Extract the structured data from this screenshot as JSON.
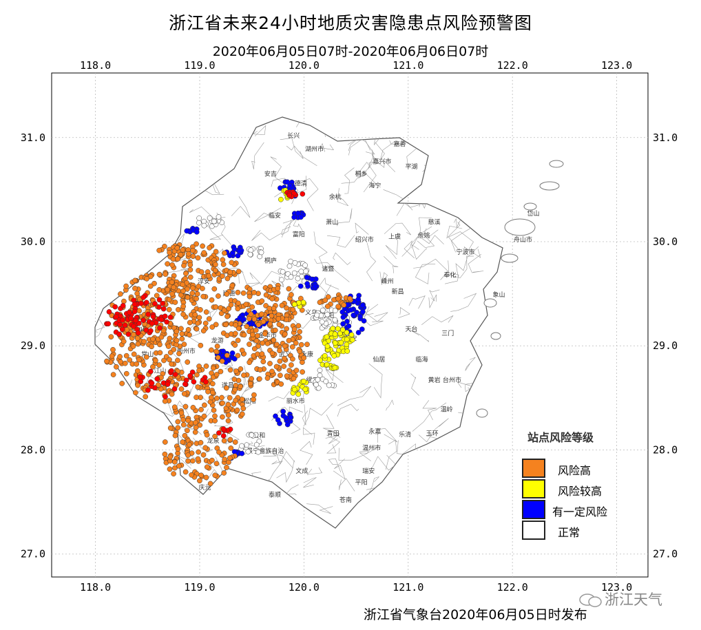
{
  "title": "浙江省未来24小时地质灾害隐患点风险预警图",
  "subtitle": "2020年06月05日07时-2020年06月06日07时",
  "footer": "浙江省气象台2020年06月05日时发布",
  "watermark": "浙江天气",
  "axes": {
    "lon_ticks": [
      "118.0",
      "119.0",
      "120.0",
      "121.0",
      "122.0",
      "123.0"
    ],
    "lat_ticks": [
      "31.0",
      "30.0",
      "29.0",
      "28.0",
      "27.0"
    ],
    "lon_range": [
      117.58,
      123.3
    ],
    "lat_range": [
      26.78,
      31.62
    ]
  },
  "legend": {
    "title": "站点风险等级",
    "items": [
      {
        "label": "风险高",
        "color": "#f5821f"
      },
      {
        "label": "风险较高",
        "color": "#ffff00"
      },
      {
        "label": "有一定风险",
        "color": "#0000ff"
      },
      {
        "label": "正常",
        "color": "#ffffff"
      }
    ]
  },
  "colors": {
    "highest": "#ff0000",
    "high": "#f5821f",
    "elevated": "#ffff00",
    "some": "#0000ff",
    "normal": "#ffffff",
    "county_line": "#9a9a9a"
  },
  "cities": [
    {
      "name": "长兴",
      "lon": 119.9,
      "lat": 31.0
    },
    {
      "name": "湖州市",
      "lon": 120.1,
      "lat": 30.87
    },
    {
      "name": "嘉善",
      "lon": 120.92,
      "lat": 30.92
    },
    {
      "name": "嘉兴市",
      "lon": 120.75,
      "lat": 30.75
    },
    {
      "name": "平湖",
      "lon": 121.03,
      "lat": 30.7
    },
    {
      "name": "德清",
      "lon": 119.97,
      "lat": 30.54
    },
    {
      "name": "桐乡",
      "lon": 120.55,
      "lat": 30.63
    },
    {
      "name": "海宁",
      "lon": 120.68,
      "lat": 30.52
    },
    {
      "name": "安吉",
      "lon": 119.68,
      "lat": 30.63
    },
    {
      "name": "余杭",
      "lon": 120.3,
      "lat": 30.41
    },
    {
      "name": "临安",
      "lon": 119.72,
      "lat": 30.23
    },
    {
      "name": "萧山",
      "lon": 120.27,
      "lat": 30.17
    },
    {
      "name": "绍兴市",
      "lon": 120.58,
      "lat": 30.0
    },
    {
      "name": "上虞",
      "lon": 120.87,
      "lat": 30.03
    },
    {
      "name": "余姚",
      "lon": 121.15,
      "lat": 30.04
    },
    {
      "name": "慈溪",
      "lon": 121.25,
      "lat": 30.17
    },
    {
      "name": "岱山",
      "lon": 122.2,
      "lat": 30.25
    },
    {
      "name": "舟山市",
      "lon": 122.1,
      "lat": 30.0
    },
    {
      "name": "宁波市",
      "lon": 121.55,
      "lat": 29.88
    },
    {
      "name": "富阳",
      "lon": 119.95,
      "lat": 30.05
    },
    {
      "name": "桐庐",
      "lon": 119.68,
      "lat": 29.8
    },
    {
      "name": "诸暨",
      "lon": 120.23,
      "lat": 29.72
    },
    {
      "name": "嵊州",
      "lon": 120.8,
      "lat": 29.6
    },
    {
      "name": "奉化",
      "lon": 121.4,
      "lat": 29.66
    },
    {
      "name": "象山",
      "lon": 121.87,
      "lat": 29.47
    },
    {
      "name": "淳安",
      "lon": 119.04,
      "lat": 29.6
    },
    {
      "name": "建德",
      "lon": 119.28,
      "lat": 29.48
    },
    {
      "name": "兰溪",
      "lon": 119.46,
      "lat": 29.2
    },
    {
      "name": "义乌",
      "lon": 120.07,
      "lat": 29.3
    },
    {
      "name": "东阳",
      "lon": 120.23,
      "lat": 29.27
    },
    {
      "name": "新昌",
      "lon": 120.9,
      "lat": 29.5
    },
    {
      "name": "天台",
      "lon": 121.03,
      "lat": 29.14
    },
    {
      "name": "三门",
      "lon": 121.38,
      "lat": 29.1
    },
    {
      "name": "开化",
      "lon": 118.41,
      "lat": 29.13
    },
    {
      "name": "常山",
      "lon": 118.5,
      "lat": 28.9
    },
    {
      "name": "衢州市",
      "lon": 118.87,
      "lat": 28.93
    },
    {
      "name": "龙游",
      "lon": 119.17,
      "lat": 29.03
    },
    {
      "name": "金华市",
      "lon": 119.65,
      "lat": 29.08
    },
    {
      "name": "武义",
      "lon": 119.82,
      "lat": 28.9
    },
    {
      "name": "永康",
      "lon": 120.03,
      "lat": 28.9
    },
    {
      "name": "磐安",
      "lon": 120.45,
      "lat": 29.05
    },
    {
      "name": "仙居",
      "lon": 120.72,
      "lat": 28.85
    },
    {
      "name": "临海",
      "lon": 121.13,
      "lat": 28.85
    },
    {
      "name": "台州市",
      "lon": 121.42,
      "lat": 28.65
    },
    {
      "name": "江山",
      "lon": 118.62,
      "lat": 28.74
    },
    {
      "name": "遂昌",
      "lon": 119.27,
      "lat": 28.6
    },
    {
      "name": "松阳",
      "lon": 119.48,
      "lat": 28.45
    },
    {
      "name": "丽水市",
      "lon": 119.92,
      "lat": 28.45
    },
    {
      "name": "缙云",
      "lon": 120.08,
      "lat": 28.65
    },
    {
      "name": "黄岩",
      "lon": 121.25,
      "lat": 28.65
    },
    {
      "name": "温岭",
      "lon": 121.37,
      "lat": 28.37
    },
    {
      "name": "玉环",
      "lon": 121.23,
      "lat": 28.14
    },
    {
      "name": "乐清",
      "lon": 120.97,
      "lat": 28.13
    },
    {
      "name": "青田",
      "lon": 120.28,
      "lat": 28.14
    },
    {
      "name": "永嘉",
      "lon": 120.68,
      "lat": 28.16
    },
    {
      "name": "云和",
      "lon": 119.57,
      "lat": 28.12
    },
    {
      "name": "龙泉",
      "lon": 119.13,
      "lat": 28.07
    },
    {
      "name": "景宁畲族自治",
      "lon": 119.63,
      "lat": 27.97
    },
    {
      "name": "温州市",
      "lon": 120.65,
      "lat": 28.0
    },
    {
      "name": "瑞安",
      "lon": 120.62,
      "lat": 27.78
    },
    {
      "name": "文成",
      "lon": 119.98,
      "lat": 27.78
    },
    {
      "name": "泰顺",
      "lon": 119.72,
      "lat": 27.55
    },
    {
      "name": "平阳",
      "lon": 120.55,
      "lat": 27.67
    },
    {
      "name": "苍南",
      "lon": 120.4,
      "lat": 27.5
    },
    {
      "name": "庆元",
      "lon": 119.05,
      "lat": 27.62
    }
  ],
  "risk_zones": [
    {
      "level": "high",
      "lon": 118.6,
      "lat": 29.35,
      "rlon": 0.45,
      "rlat": 0.35,
      "n": 160
    },
    {
      "level": "high",
      "lon": 118.5,
      "lat": 28.9,
      "rlon": 0.4,
      "rlat": 0.4,
      "n": 140
    },
    {
      "level": "high",
      "lon": 119.0,
      "lat": 29.7,
      "rlon": 0.4,
      "rlat": 0.28,
      "n": 110
    },
    {
      "level": "high",
      "lon": 119.25,
      "lat": 29.15,
      "rlon": 0.3,
      "rlat": 0.3,
      "n": 60
    },
    {
      "level": "high",
      "lon": 119.65,
      "lat": 29.4,
      "rlon": 0.35,
      "rlat": 0.2,
      "n": 80
    },
    {
      "level": "high",
      "lon": 119.75,
      "lat": 28.95,
      "rlon": 0.3,
      "rlat": 0.35,
      "n": 130
    },
    {
      "level": "high",
      "lon": 119.1,
      "lat": 28.55,
      "rlon": 0.45,
      "rlat": 0.3,
      "n": 120
    },
    {
      "level": "high",
      "lon": 119.0,
      "lat": 28.0,
      "rlon": 0.35,
      "rlat": 0.35,
      "n": 100
    },
    {
      "level": "high",
      "lon": 120.3,
      "lat": 29.43,
      "rlon": 0.15,
      "rlat": 0.07,
      "n": 25
    },
    {
      "level": "high",
      "lon": 118.8,
      "lat": 29.9,
      "rlon": 0.2,
      "rlat": 0.08,
      "n": 25
    },
    {
      "level": "highest",
      "lon": 118.3,
      "lat": 29.25,
      "rlon": 0.2,
      "rlat": 0.15,
      "n": 30
    },
    {
      "level": "highest",
      "lon": 118.5,
      "lat": 29.3,
      "rlon": 0.25,
      "rlat": 0.2,
      "n": 40
    },
    {
      "level": "highest",
      "lon": 118.6,
      "lat": 28.65,
      "rlon": 0.2,
      "rlat": 0.15,
      "n": 18
    },
    {
      "level": "highest",
      "lon": 118.95,
      "lat": 28.65,
      "rlon": 0.12,
      "rlat": 0.1,
      "n": 10
    },
    {
      "level": "highest",
      "lon": 119.9,
      "lat": 30.45,
      "rlon": 0.09,
      "rlat": 0.03,
      "n": 10
    },
    {
      "level": "highest",
      "lon": 119.2,
      "lat": 28.18,
      "rlon": 0.12,
      "rlat": 0.05,
      "n": 6
    },
    {
      "level": "elevated",
      "lon": 120.33,
      "lat": 29.05,
      "rlon": 0.14,
      "rlat": 0.14,
      "n": 55
    },
    {
      "level": "elevated",
      "lon": 119.95,
      "lat": 28.6,
      "rlon": 0.1,
      "rlat": 0.07,
      "n": 18
    },
    {
      "level": "elevated",
      "lon": 120.25,
      "lat": 28.85,
      "rlon": 0.1,
      "rlat": 0.08,
      "n": 15
    },
    {
      "level": "elevated",
      "lon": 119.8,
      "lat": 30.45,
      "rlon": 0.06,
      "rlat": 0.05,
      "n": 8
    },
    {
      "level": "elevated",
      "lon": 119.95,
      "lat": 29.4,
      "rlon": 0.06,
      "rlat": 0.04,
      "n": 6
    },
    {
      "level": "some",
      "lon": 120.48,
      "lat": 29.3,
      "rlon": 0.12,
      "rlat": 0.2,
      "n": 45
    },
    {
      "level": "some",
      "lon": 119.55,
      "lat": 29.25,
      "rlon": 0.2,
      "rlat": 0.08,
      "n": 30
    },
    {
      "level": "some",
      "lon": 119.25,
      "lat": 28.9,
      "rlon": 0.1,
      "rlat": 0.06,
      "n": 20
    },
    {
      "level": "some",
      "lon": 119.8,
      "lat": 28.3,
      "rlon": 0.08,
      "rlat": 0.08,
      "n": 16
    },
    {
      "level": "some",
      "lon": 119.85,
      "lat": 30.5,
      "rlon": 0.1,
      "rlat": 0.08,
      "n": 18
    },
    {
      "level": "some",
      "lon": 119.35,
      "lat": 29.9,
      "rlon": 0.1,
      "rlat": 0.05,
      "n": 14
    },
    {
      "level": "some",
      "lon": 120.05,
      "lat": 29.6,
      "rlon": 0.1,
      "rlat": 0.06,
      "n": 14
    },
    {
      "level": "some",
      "lon": 119.95,
      "lat": 30.25,
      "rlon": 0.06,
      "rlat": 0.03,
      "n": 10
    },
    {
      "level": "some",
      "lon": 118.93,
      "lat": 30.1,
      "rlon": 0.06,
      "rlat": 0.03,
      "n": 8
    },
    {
      "level": "some",
      "lon": 119.35,
      "lat": 27.95,
      "rlon": 0.06,
      "rlat": 0.05,
      "n": 8
    },
    {
      "level": "normal",
      "lon": 120.25,
      "lat": 29.25,
      "rlon": 0.2,
      "rlat": 0.1,
      "n": 35
    },
    {
      "level": "normal",
      "lon": 119.9,
      "lat": 29.7,
      "rlon": 0.15,
      "rlat": 0.12,
      "n": 25
    },
    {
      "level": "normal",
      "lon": 119.1,
      "lat": 30.2,
      "rlon": 0.12,
      "rlat": 0.06,
      "n": 14
    },
    {
      "level": "normal",
      "lon": 119.5,
      "lat": 28.05,
      "rlon": 0.12,
      "rlat": 0.1,
      "n": 14
    },
    {
      "level": "normal",
      "lon": 120.2,
      "lat": 28.7,
      "rlon": 0.15,
      "rlat": 0.12,
      "n": 16
    },
    {
      "level": "normal",
      "lon": 119.55,
      "lat": 29.9,
      "rlon": 0.1,
      "rlat": 0.05,
      "n": 10
    }
  ]
}
